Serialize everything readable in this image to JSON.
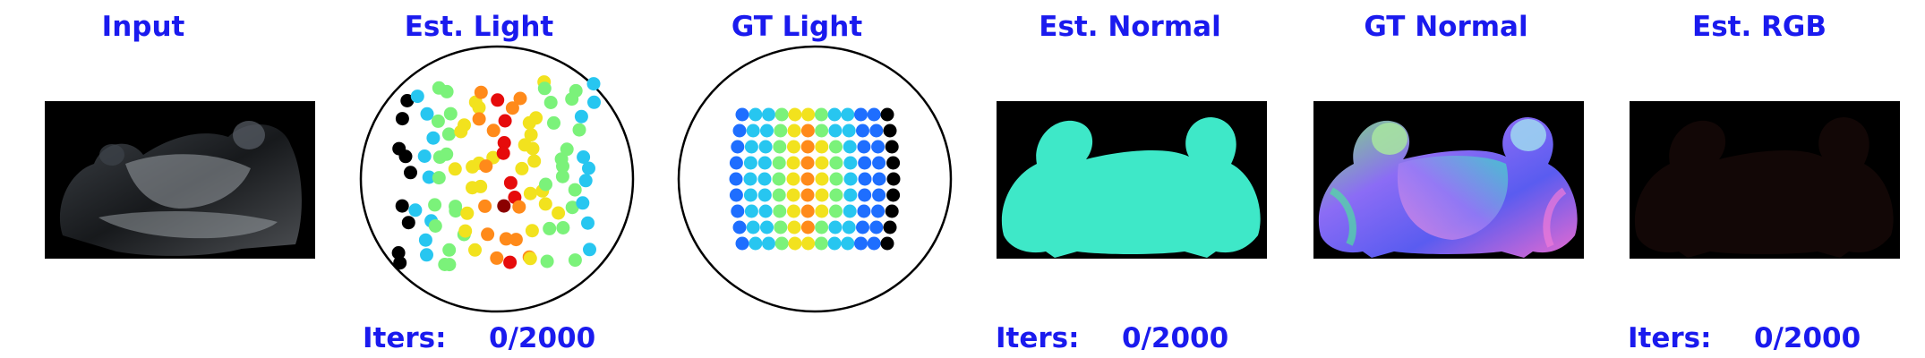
{
  "panels": {
    "input": {
      "title": "Input"
    },
    "est_light": {
      "title": "Est. Light",
      "iters_label": "Iters:",
      "iters_value": "0/2000"
    },
    "gt_light": {
      "title": "GT Light"
    },
    "est_normal": {
      "title": "Est. Normal",
      "iters_label": "Iters:",
      "iters_value": "0/2000"
    },
    "gt_normal": {
      "title": "GT Normal"
    },
    "est_rgb": {
      "title": "Est. RGB",
      "iters_label": "Iters:",
      "iters_value": "0/2000"
    }
  },
  "colors": {
    "title_text": "#1a1aee",
    "est_normal_fill": "#3ee8c8",
    "image_background": "#000000"
  },
  "light_color_scale": [
    "#0000aa",
    "#1e6eff",
    "#27c6f0",
    "#7bf27a",
    "#f2e21e",
    "#ff8a1a",
    "#e60b0b",
    "#8b0000"
  ]
}
